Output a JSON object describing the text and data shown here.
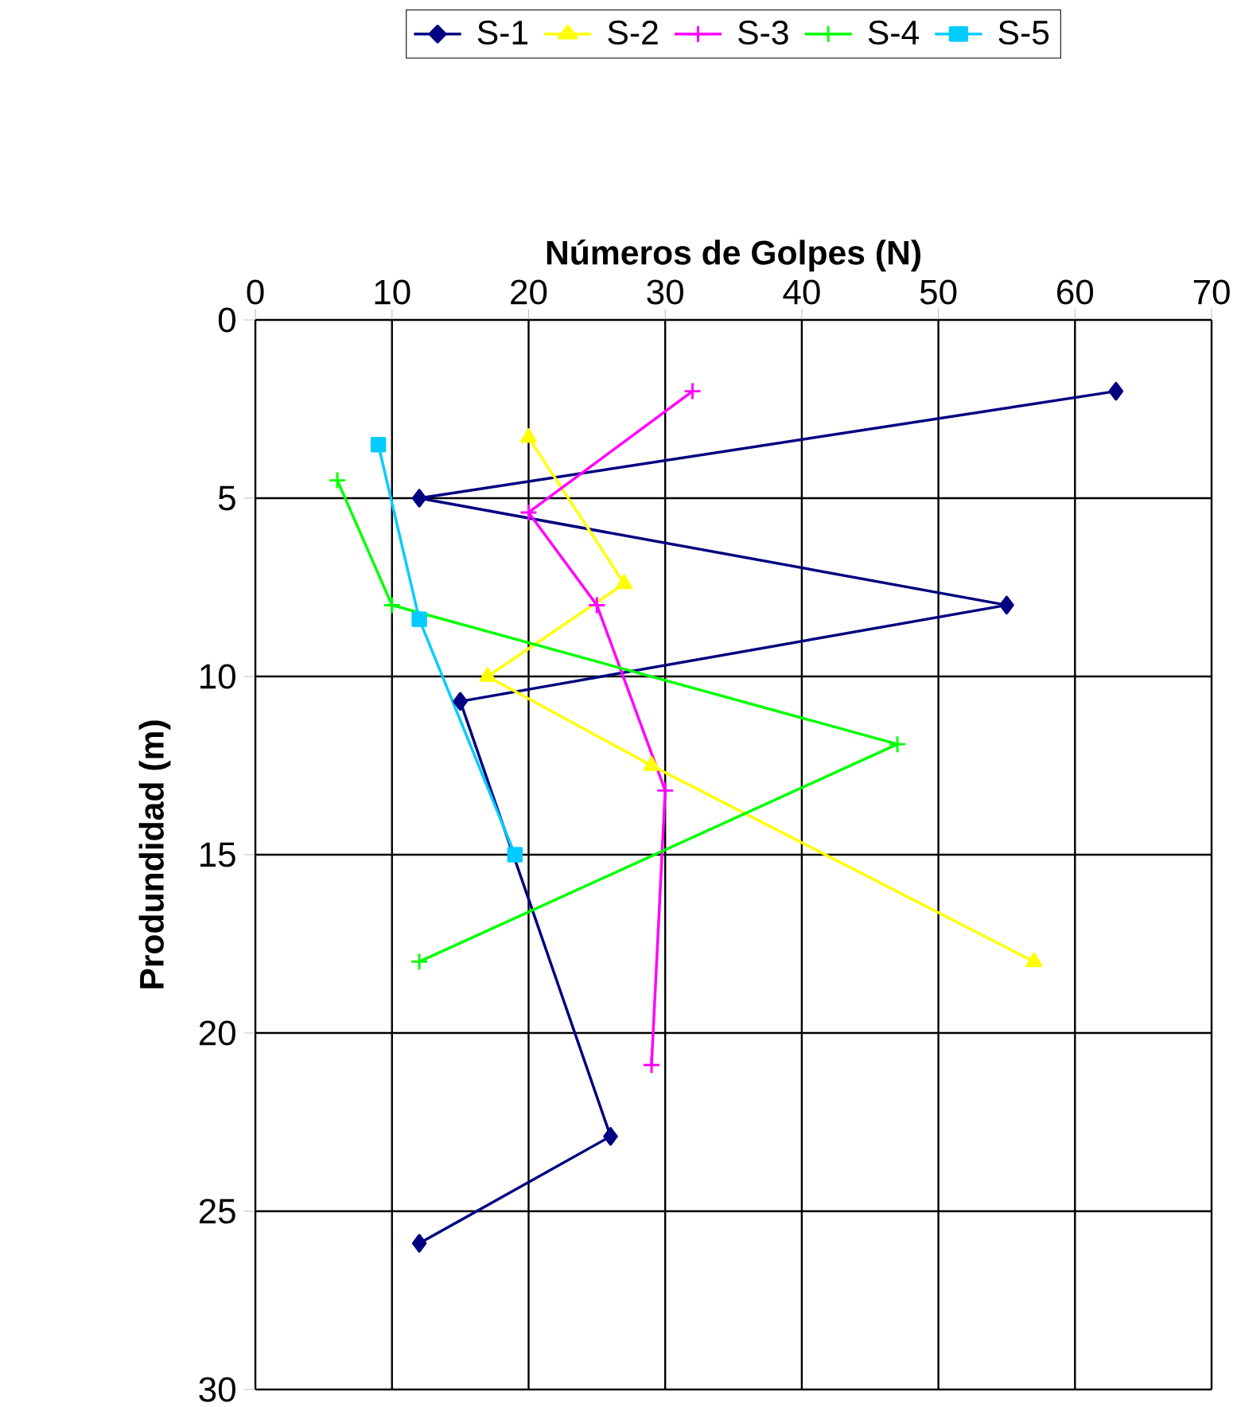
{
  "chart_data": {
    "type": "line",
    "xlabel": "**Números de Golpes (N)**",
    "ylabel": "**Produndidad (m)**",
    "xlim": [
      0,
      70
    ],
    "ylim": [
      30,
      0
    ],
    "xticks": [
      0,
      10,
      20,
      30,
      40,
      50,
      60,
      70
    ],
    "yticks": [
      0,
      5,
      10,
      15,
      20,
      25,
      30
    ],
    "grid": true,
    "legend": "top",
    "line_style": "solid",
    "series": [
      {
        "name": "S-1",
        "color": "#000080",
        "marker": "diamond",
        "x": [
          63,
          12,
          55,
          15,
          26,
          12
        ],
        "values": [
          2,
          5,
          8,
          10.7,
          22.9,
          25.9
        ]
      },
      {
        "name": "S-2",
        "color": "#ffff00",
        "marker": "triangle",
        "x": [
          20,
          27,
          17,
          29,
          57
        ],
        "values": [
          3.3,
          7.4,
          10,
          12.5,
          18
        ]
      },
      {
        "name": "S-3",
        "color": "#ff00ff",
        "marker": "cross",
        "x": [
          32,
          20,
          25,
          30,
          29
        ],
        "values": [
          2,
          5.4,
          8,
          13.2,
          20.9
        ]
      },
      {
        "name": "S-4",
        "color": "#00ff00",
        "marker": "cross",
        "x": [
          6,
          10,
          47,
          12
        ],
        "values": [
          4.5,
          8,
          11.9,
          18
        ]
      },
      {
        "name": "S-5",
        "color": "#00ccff",
        "marker": "square",
        "x": [
          9,
          12,
          19
        ],
        "values": [
          3.5,
          8.4,
          15
        ]
      }
    ]
  }
}
